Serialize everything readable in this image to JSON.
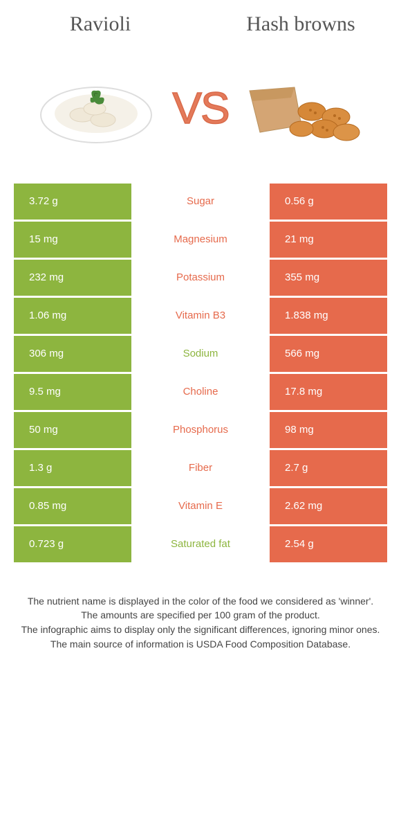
{
  "colors": {
    "green": "#8db53f",
    "orange": "#e66a4c",
    "vs": "#e47a5a",
    "header_text": "#555555",
    "background": "#ffffff"
  },
  "header": {
    "left": "Ravioli",
    "right": "Hash browns"
  },
  "vs_label": "VS",
  "rows": [
    {
      "left": "3.72 g",
      "label": "Sugar",
      "right": "0.56 g",
      "winner": "right"
    },
    {
      "left": "15 mg",
      "label": "Magnesium",
      "right": "21 mg",
      "winner": "right"
    },
    {
      "left": "232 mg",
      "label": "Potassium",
      "right": "355 mg",
      "winner": "right"
    },
    {
      "left": "1.06 mg",
      "label": "Vitamin B3",
      "right": "1.838 mg",
      "winner": "right"
    },
    {
      "left": "306 mg",
      "label": "Sodium",
      "right": "566 mg",
      "winner": "left"
    },
    {
      "left": "9.5 mg",
      "label": "Choline",
      "right": "17.8 mg",
      "winner": "right"
    },
    {
      "left": "50 mg",
      "label": "Phosphorus",
      "right": "98 mg",
      "winner": "right"
    },
    {
      "left": "1.3 g",
      "label": "Fiber",
      "right": "2.7 g",
      "winner": "right"
    },
    {
      "left": "0.85 mg",
      "label": "Vitamin E",
      "right": "2.62 mg",
      "winner": "right"
    },
    {
      "left": "0.723 g",
      "label": "Saturated fat",
      "right": "2.54 g",
      "winner": "left"
    }
  ],
  "footnotes": [
    "The nutrient name is displayed in the color of the food we considered as 'winner'.",
    "The amounts are specified per 100 gram of the product.",
    "The infographic aims to display only the significant differences, ignoring minor ones.",
    "The main source of information is USDA Food Composition Database."
  ]
}
